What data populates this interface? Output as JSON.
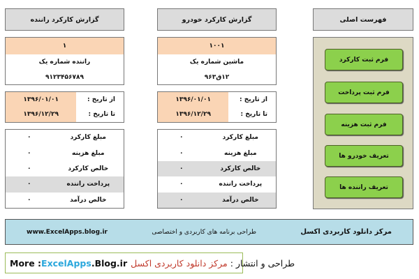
{
  "menu": {
    "title": "فهرست اصلی",
    "buttons": [
      "فرم ثبت کارکرد",
      "فرم ثبت پرداخت",
      "فرم ثبت هزینه",
      "تعریف خودرو ها",
      "تعریف راننده ها"
    ]
  },
  "vehicle": {
    "title": "گزارش کارکرد خودرو",
    "id": "۱۰۰۱",
    "name": "ماشین شماره یک",
    "plate": "۱۲ق۹۶۳",
    "from_label": "از تاریخ :",
    "from": "۱۳۹۶/۰۱/۰۱",
    "to_label": "تا تاریخ :",
    "to": "۱۳۹۶/۱۲/۲۹",
    "summary": [
      {
        "label": "مبلغ کارکرد",
        "value": "۰"
      },
      {
        "label": "مبلغ هزینه",
        "value": "۰"
      },
      {
        "label": "خالص کارکرد",
        "value": "۰"
      },
      {
        "label": "پرداخت راننده",
        "value": "۰"
      },
      {
        "label": "خالص درآمد",
        "value": "۰"
      }
    ]
  },
  "driver": {
    "title": "گزارش کارکرد راننده",
    "id": "۱",
    "name": "راننده شماره یک",
    "phone": "۹۱۲۳۴۵۶۷۸۹",
    "from_label": "از تاریخ :",
    "from": "۱۳۹۶/۰۱/۰۱",
    "to_label": "تا تاریخ :",
    "to": "۱۳۹۶/۱۲/۲۹",
    "summary": [
      {
        "label": "مبلغ کارکرد",
        "value": "۰"
      },
      {
        "label": "مبلغ هزینه",
        "value": "۰"
      },
      {
        "label": "خالص کارکرد",
        "value": "۰"
      },
      {
        "label": "پرداخت راننده",
        "value": "۰"
      },
      {
        "label": "خالص درآمد",
        "value": "۰"
      }
    ]
  },
  "banner": {
    "brand": "مرکز دانلود کاربردی اکسل",
    "tagline": "طراحی برنامه های کاربردی و اختصاصی",
    "url": "www.ExcelApps.blog.ir"
  },
  "footer": {
    "prefix": "طراحی و انتشار :",
    "brand": "مرکز دانلود کاربردی اکسل",
    "more": "More : ",
    "site1": "ExcelApps",
    "site2": ".Blog.ir"
  },
  "colors": {
    "orange": "#fad5b5",
    "green": "#8cd04c",
    "banner": "#b7dde8",
    "red": "#c0392b",
    "blue": "#2aa7dc"
  }
}
